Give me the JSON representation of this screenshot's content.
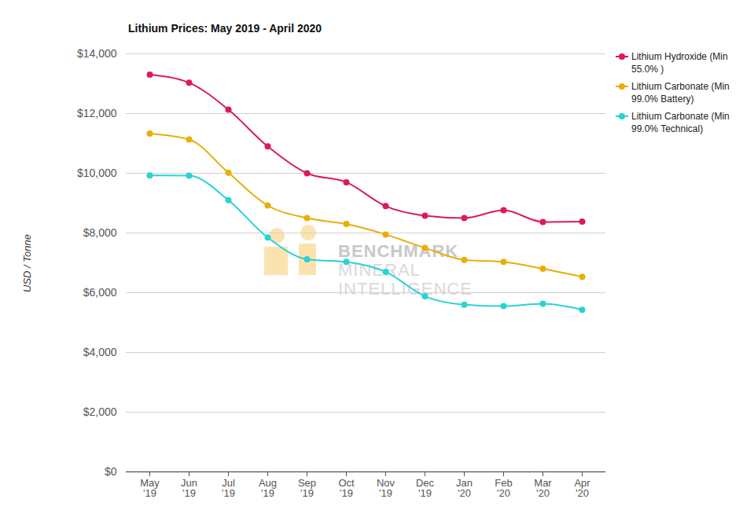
{
  "chart_data": {
    "type": "line",
    "title": "Lithium Prices: May 2019 - April 2020",
    "y_label": "USD / Tonne",
    "annotations": [
      "BENCHMARK",
      "MINERAL",
      "INTELLIGENCE"
    ],
    "categories": [
      "May '19",
      "Jun '19",
      "Jul '19",
      "Aug '19",
      "Sep '19",
      "Oct '19",
      "Nov '19",
      "Dec '19",
      "Jan '20",
      "Feb '20",
      "Mar '20",
      "Apr '20"
    ],
    "series": [
      {
        "name": "Lithium Hydroxide (Min 55.0% )",
        "color": "#dc1a5a",
        "values": [
          13300,
          13030,
          12130,
          10900,
          10000,
          9700,
          8900,
          8580,
          8500,
          8760,
          8370,
          8380
        ]
      },
      {
        "name": "Lithium Carbonate (Min 99.0% Battery)",
        "color": "#e8ae0c",
        "values": [
          11330,
          11130,
          10020,
          8920,
          8500,
          8300,
          7950,
          7500,
          7100,
          7030,
          6800,
          6530
        ]
      },
      {
        "name": "Lithium Carbonate (Min 99.0% Technical)",
        "color": "#28d3d3",
        "values": [
          9930,
          9920,
          9100,
          7850,
          7120,
          7030,
          6700,
          5880,
          5600,
          5550,
          5630,
          5430
        ]
      }
    ],
    "ylim": [
      0,
      14000
    ],
    "yticks": [
      {
        "value": 0,
        "label": "$0"
      },
      {
        "value": 2000,
        "label": "$2,000"
      },
      {
        "value": 4000,
        "label": "$4,000"
      },
      {
        "value": 6000,
        "label": "$6,000"
      },
      {
        "value": 8000,
        "label": "$8,000"
      },
      {
        "value": 10000,
        "label": "$10,000"
      },
      {
        "value": 12000,
        "label": "$12,000"
      },
      {
        "value": 14000,
        "label": "$14,000"
      }
    ],
    "grid": true,
    "legend": "right",
    "marker": "circle"
  }
}
